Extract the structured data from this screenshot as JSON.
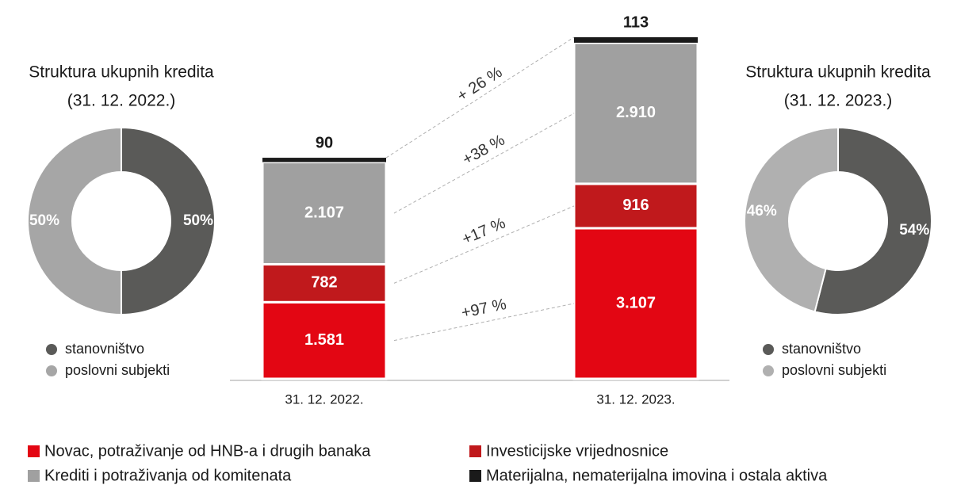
{
  "chart_data": [
    {
      "type": "bar",
      "stacked": true,
      "categories": [
        "31. 12. 2022.",
        "31. 12. 2023."
      ],
      "series": [
        {
          "name": "Novac, potraživanje od HNB-a i drugih banaka",
          "color": "#e30613",
          "values": [
            1581,
            3107
          ],
          "value_labels": [
            "1.581",
            "3.107"
          ]
        },
        {
          "name": "Investicijske vrijednosnice",
          "color": "#c0191c",
          "values": [
            782,
            916
          ]
        },
        {
          "name": "Krediti i potraživanja od komitenata",
          "color": "#a0a0a0",
          "values": [
            2107,
            2910
          ],
          "value_labels": [
            "2.107",
            "2.910"
          ]
        },
        {
          "name": "Materijalna, nematerijalna imovina i ostala aktiva",
          "color": "#1a1a1a",
          "values": [
            90,
            113
          ]
        }
      ],
      "annotations": [
        "+97 %",
        "+17 %",
        "+38 %",
        "+ 26 %"
      ]
    },
    {
      "type": "pie",
      "donut": true,
      "title": "Struktura ukupnih kredita",
      "subtitle": "(31. 12. 2022.)",
      "categories": [
        "stanovništvo",
        "poslovni subjekti"
      ],
      "values": [
        50,
        50
      ],
      "value_labels": [
        "50%",
        "50%"
      ],
      "colors": [
        "#5a5a58",
        "#a6a6a6"
      ]
    },
    {
      "type": "pie",
      "donut": true,
      "title": "Struktura ukupnih kredita",
      "subtitle": "(31. 12. 2023.)",
      "categories": [
        "stanovništvo",
        "poslovni subjekti"
      ],
      "values": [
        54,
        46
      ],
      "value_labels": [
        "54%",
        "46%"
      ],
      "colors": [
        "#5a5a58",
        "#b0b0b0"
      ]
    }
  ]
}
